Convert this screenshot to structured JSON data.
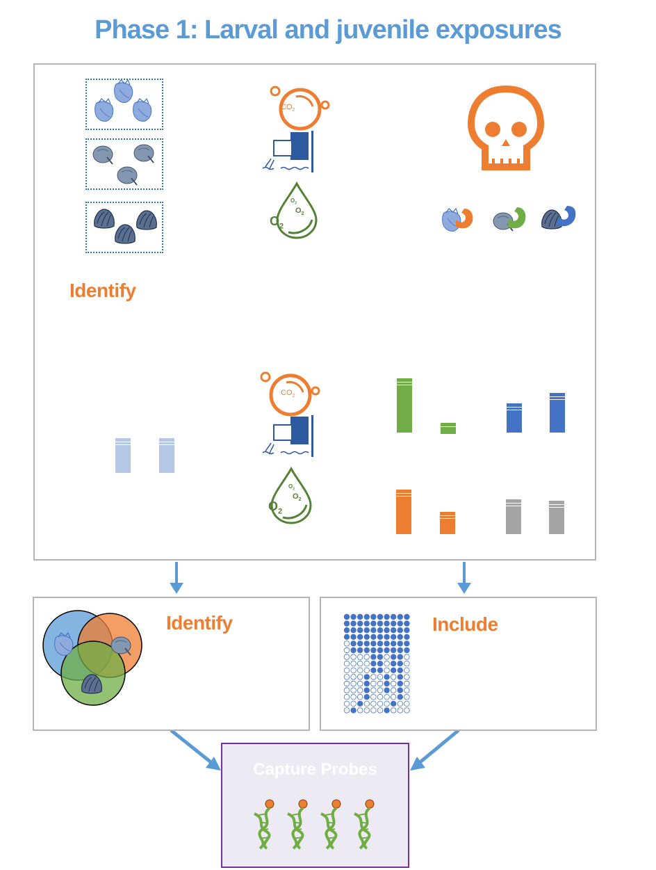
{
  "title": "Phase 1: Larval and juvenile exposures",
  "main_panel": {
    "identify_label": "Identify",
    "co2_text": "CO",
    "co2_sub": "2",
    "o2_text": "O",
    "o2_sub": "2"
  },
  "left_panel": {
    "label": "Identify"
  },
  "right_panel": {
    "label": "Include"
  },
  "probes": {
    "label": "Capture Probes"
  },
  "colors": {
    "title": "#5b9bd5",
    "orange": "#ed7d31",
    "green": "#70ad47",
    "blue": "#4472c4",
    "light_blue": "#b4c7e7",
    "gray": "#a5a5a5",
    "purple": "#7030a0",
    "arrow": "#5b9bd5"
  },
  "icons": [
    "larva-shell-icon",
    "veliger-icon",
    "oyster-icon",
    "co2-icon",
    "outflow-pipe-icon",
    "oxygen-drop-icon",
    "skull-icon",
    "flexed-arm-icon",
    "dna-probe-icon",
    "venn-diagram",
    "dot-matrix"
  ]
}
